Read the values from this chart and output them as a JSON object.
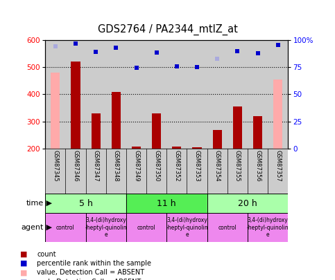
{
  "title": "GDS2764 / PA2344_mtlZ_at",
  "samples": [
    "GSM87345",
    "GSM87346",
    "GSM87347",
    "GSM87348",
    "GSM87349",
    "GSM87350",
    "GSM87352",
    "GSM87353",
    "GSM87354",
    "GSM87355",
    "GSM87356",
    "GSM87357"
  ],
  "count_values": [
    480,
    520,
    330,
    410,
    210,
    330,
    210,
    205,
    270,
    355,
    320,
    455
  ],
  "count_absent": [
    true,
    false,
    false,
    false,
    false,
    false,
    false,
    false,
    false,
    false,
    false,
    true
  ],
  "rank_values": [
    575,
    585,
    555,
    570,
    498,
    553,
    503,
    499,
    530,
    558,
    550,
    580
  ],
  "rank_absent": [
    true,
    false,
    false,
    false,
    false,
    false,
    false,
    false,
    true,
    false,
    false,
    false
  ],
  "ylim_left": [
    200,
    600
  ],
  "ylim_right": [
    0,
    100
  ],
  "yticks_left": [
    200,
    300,
    400,
    500,
    600
  ],
  "yticks_right": [
    0,
    25,
    50,
    75,
    100
  ],
  "ytick_labels_right": [
    "0",
    "25",
    "50",
    "75",
    "100%"
  ],
  "time_groups": [
    {
      "label": "5 h",
      "start": 0,
      "end": 4,
      "color": "#aaffaa"
    },
    {
      "label": "11 h",
      "start": 4,
      "end": 8,
      "color": "#55ee55"
    },
    {
      "label": "20 h",
      "start": 8,
      "end": 12,
      "color": "#aaffaa"
    }
  ],
  "agent_groups": [
    {
      "label": "control",
      "start": 0,
      "end": 2
    },
    {
      "label": "3,4-(di)hydroxy\n-heptyl-quinolin\ne",
      "start": 2,
      "end": 4
    },
    {
      "label": "control",
      "start": 4,
      "end": 6
    },
    {
      "label": "3,4-(di)hydroxy\n-heptyl-quinolin\ne",
      "start": 6,
      "end": 8
    },
    {
      "label": "control",
      "start": 8,
      "end": 10
    },
    {
      "label": "3,4-(di)hydroxy\n-heptyl-quinolin\ne",
      "start": 10,
      "end": 12
    }
  ],
  "bar_color_present": "#aa0000",
  "bar_color_absent": "#ffaaaa",
  "rank_color_present": "#0000cc",
  "rank_color_absent": "#aaaadd",
  "bg_color": "#cccccc",
  "agent_bg": "#ee88ee",
  "legend_items": [
    {
      "color": "#aa0000",
      "label": "count"
    },
    {
      "color": "#0000cc",
      "label": "percentile rank within the sample"
    },
    {
      "color": "#ffaaaa",
      "label": "value, Detection Call = ABSENT"
    },
    {
      "color": "#aaaadd",
      "label": "rank, Detection Call = ABSENT"
    }
  ]
}
